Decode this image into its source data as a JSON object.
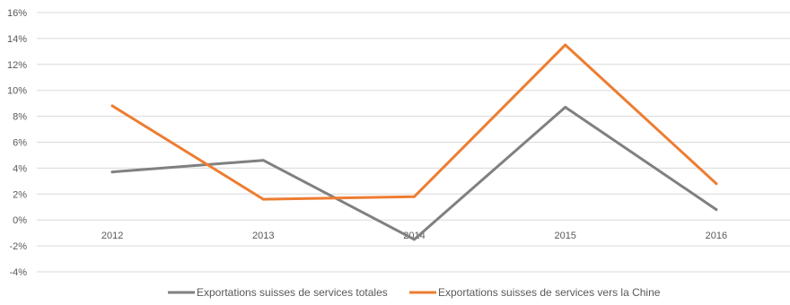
{
  "chart_data": {
    "type": "line",
    "categories": [
      "2012",
      "2013",
      "2014",
      "2015",
      "2016"
    ],
    "series": [
      {
        "name": "Exportations suisses de services totales",
        "color": "#808080",
        "values": [
          3.7,
          4.6,
          -1.5,
          8.7,
          0.8
        ]
      },
      {
        "name": "Exportations suisses de services vers la Chine",
        "color": "#ED7D31",
        "values": [
          8.8,
          1.6,
          1.8,
          13.5,
          2.8
        ]
      }
    ],
    "yticks": [
      "16%",
      "14%",
      "12%",
      "10%",
      "8%",
      "6%",
      "4%",
      "2%",
      "0%",
      "-2%",
      "-4%"
    ],
    "ylim": [
      -4,
      16
    ],
    "grid": true,
    "legend": "bottom",
    "gridColor": "#d9d9d9",
    "title": "",
    "xlabel": "",
    "ylabel": ""
  }
}
